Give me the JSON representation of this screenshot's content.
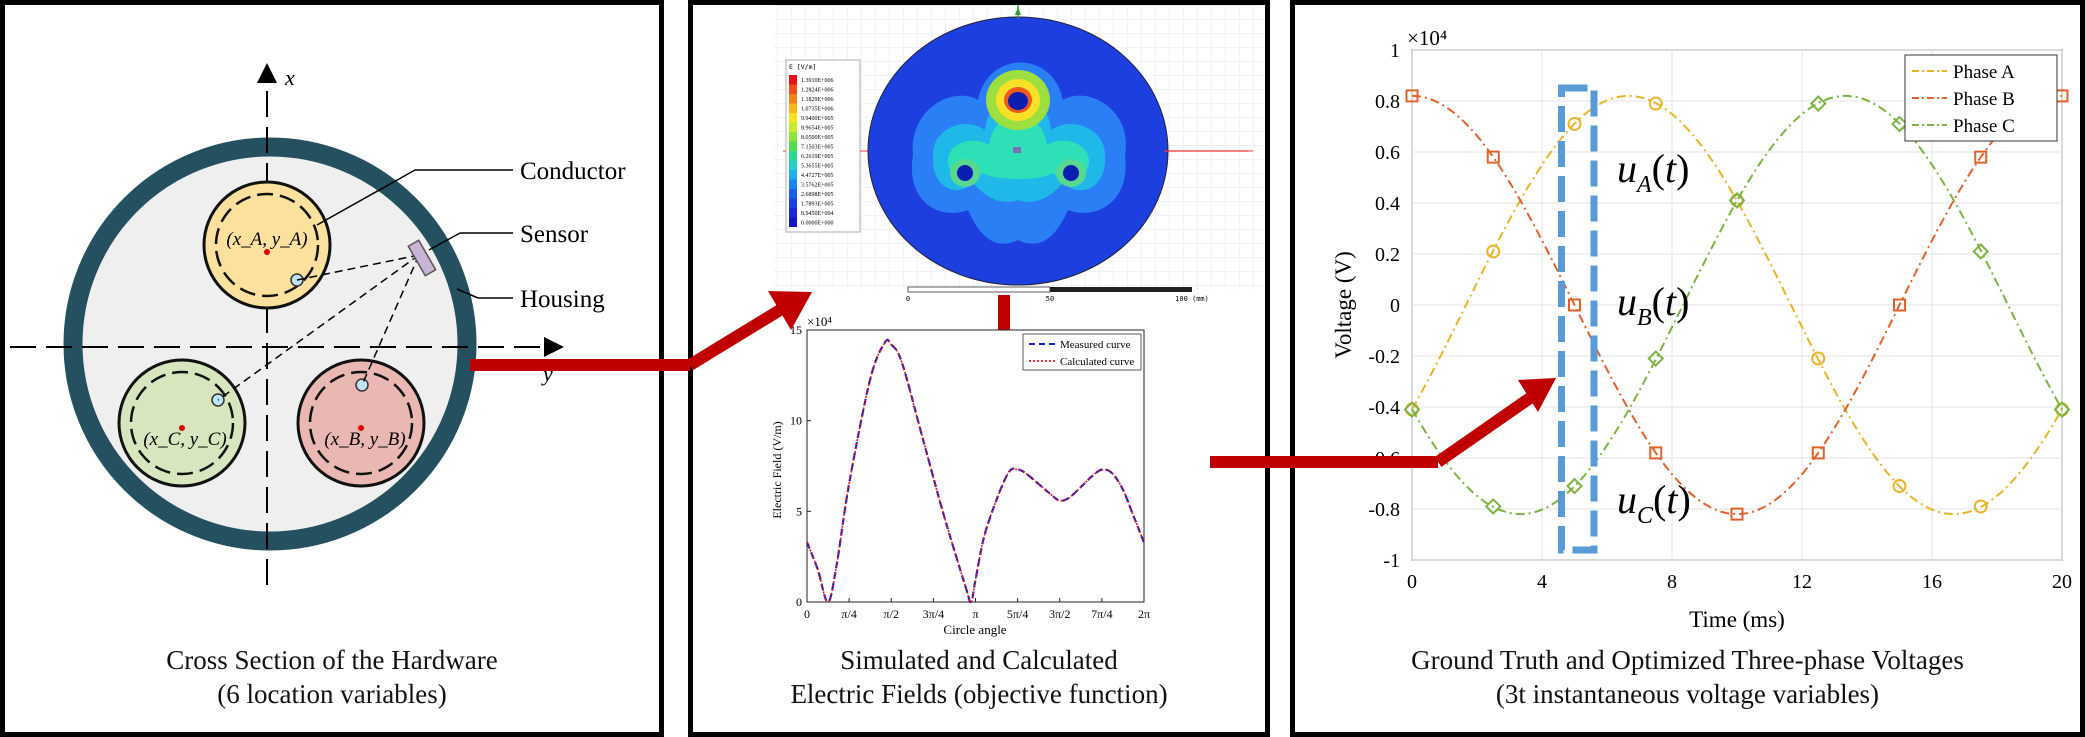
{
  "panel1": {
    "axis_x": "x",
    "axis_y": "y",
    "conductor_label": "Conductor",
    "sensor_label": "Sensor",
    "housing_label": "Housing",
    "coord_a": "(x_A, y_A)",
    "coord_b": "(x_B, y_B)",
    "coord_c": "(x_C, y_C)",
    "caption_line1": "Cross Section of the Hardware",
    "caption_line2": "(6 location variables)",
    "colors": {
      "housing": "#25505f",
      "conductor_a": "#fbe19d",
      "conductor_b": "#eab8b3",
      "conductor_c": "#d7e6bf",
      "sensor": "#c9b4d6"
    }
  },
  "panel2": {
    "legend_title": "E [V/m]",
    "legend_values": [
      "1.3910E+006",
      "1.2824E+006",
      "1.1829E+006",
      "1.0735E+006",
      "9.9400E+005",
      "8.9654E+005",
      "8.0500E+005",
      "7.1503E+005",
      "6.2619E+005",
      "5.3655E+005",
      "4.4727E+005",
      "3.5762E+005",
      "2.6898E+005",
      "1.7893E+005",
      "8.9450E+004",
      "0.0000E+000"
    ],
    "scale_labels": [
      "0",
      "50",
      "100 (mm)"
    ],
    "plot": {
      "exponent": "×10⁴",
      "ylabel": "Electric Field (V/m)",
      "xlabel": "Circle angle",
      "yticks": [
        "0",
        "5",
        "10",
        "15"
      ],
      "xticks": [
        "0",
        "π/4",
        "π/2",
        "3π/4",
        "π",
        "5π/4",
        "3π/2",
        "7π/4",
        "2π"
      ],
      "legend": [
        "Measured curve",
        "Calculated curve"
      ]
    },
    "caption_line1": "Simulated and Calculated",
    "caption_line2": "Electric Fields (objective function)"
  },
  "panel3": {
    "exponent": "×10⁴",
    "ylabel": "Voltage (V)",
    "xlabel": "Time (ms)",
    "yticks": [
      "1",
      "0.8",
      "0.6",
      "0.4",
      "0.2",
      "0",
      "-0.2",
      "-0.4",
      "-0.6",
      "-0.8",
      "-1"
    ],
    "xticks": [
      "0",
      "4",
      "8",
      "12",
      "16",
      "20"
    ],
    "legend": [
      "Phase A",
      "Phase B",
      "Phase C"
    ],
    "label_ua": "u_A(t)",
    "label_ub": "u_B(t)",
    "label_uc": "u_C(t)",
    "caption_line1": "Ground Truth and Optimized Three-phase Voltages",
    "caption_line2": "(3t instantaneous voltage variables)",
    "colors": {
      "phase_a": "#e8b428",
      "phase_b": "#e2612a",
      "phase_c": "#7cb342",
      "window": "#5b9bd5"
    }
  },
  "arrows_color": "#c00000",
  "chart_data": [
    {
      "type": "line",
      "title": "",
      "xlabel": "Circle angle",
      "ylabel": "Electric Field (V/m)",
      "y_scale_factor": "×10⁴",
      "x_unit": "radians",
      "x_tick_labels": [
        "0",
        "π/4",
        "π/2",
        "3π/4",
        "π",
        "5π/4",
        "3π/2",
        "7π/4",
        "2π"
      ],
      "xlim": [
        0,
        6.2832
      ],
      "ylim": [
        0,
        15
      ],
      "x": [
        0,
        0.2,
        0.39,
        0.55,
        0.79,
        1.18,
        1.45,
        1.57,
        1.77,
        2.16,
        2.55,
        2.95,
        3.06,
        3.14,
        3.34,
        3.73,
        3.93,
        4.12,
        4.52,
        4.71,
        4.91,
        5.3,
        5.5,
        5.69,
        5.89,
        6.08,
        6.28
      ],
      "series": [
        {
          "name": "Measured curve",
          "values": [
            3.3,
            1.8,
            0.0,
            2.0,
            6.6,
            12.3,
            14.3,
            14.2,
            13.2,
            9.0,
            4.8,
            0.9,
            0.0,
            1.2,
            4.0,
            7.0,
            7.3,
            7.0,
            6.0,
            5.6,
            5.8,
            6.9,
            7.3,
            7.1,
            6.2,
            4.8,
            3.3
          ]
        },
        {
          "name": "Calculated curve",
          "values": [
            3.3,
            1.8,
            0.0,
            2.0,
            6.6,
            12.3,
            14.3,
            14.2,
            13.2,
            9.0,
            4.8,
            0.9,
            0.0,
            1.2,
            4.0,
            7.0,
            7.3,
            7.0,
            6.0,
            5.6,
            5.8,
            6.9,
            7.3,
            7.1,
            6.2,
            4.8,
            3.3
          ]
        }
      ],
      "legend_position": "top-right",
      "grid": false
    },
    {
      "type": "line",
      "title": "",
      "xlabel": "Time (ms)",
      "ylabel": "Voltage (V)",
      "y_scale_factor": "×10⁴",
      "xlim": [
        0,
        20
      ],
      "ylim": [
        -1,
        1
      ],
      "x": [
        0,
        2.5,
        5,
        7.5,
        10,
        12.5,
        15,
        17.5,
        20
      ],
      "series": [
        {
          "name": "Phase A",
          "values": [
            -0.41,
            0.21,
            0.71,
            0.79,
            0.41,
            -0.21,
            -0.71,
            -0.79,
            -0.41
          ]
        },
        {
          "name": "Phase B",
          "values": [
            0.82,
            0.58,
            0.0,
            -0.58,
            -0.82,
            -0.58,
            0.0,
            0.58,
            0.82
          ]
        },
        {
          "name": "Phase C",
          "values": [
            -0.41,
            -0.79,
            -0.71,
            -0.21,
            0.41,
            0.79,
            0.71,
            0.21,
            -0.41
          ]
        }
      ],
      "highlight_window_ms": [
        4.6,
        5.6
      ],
      "legend_position": "top-right",
      "grid": true
    }
  ]
}
